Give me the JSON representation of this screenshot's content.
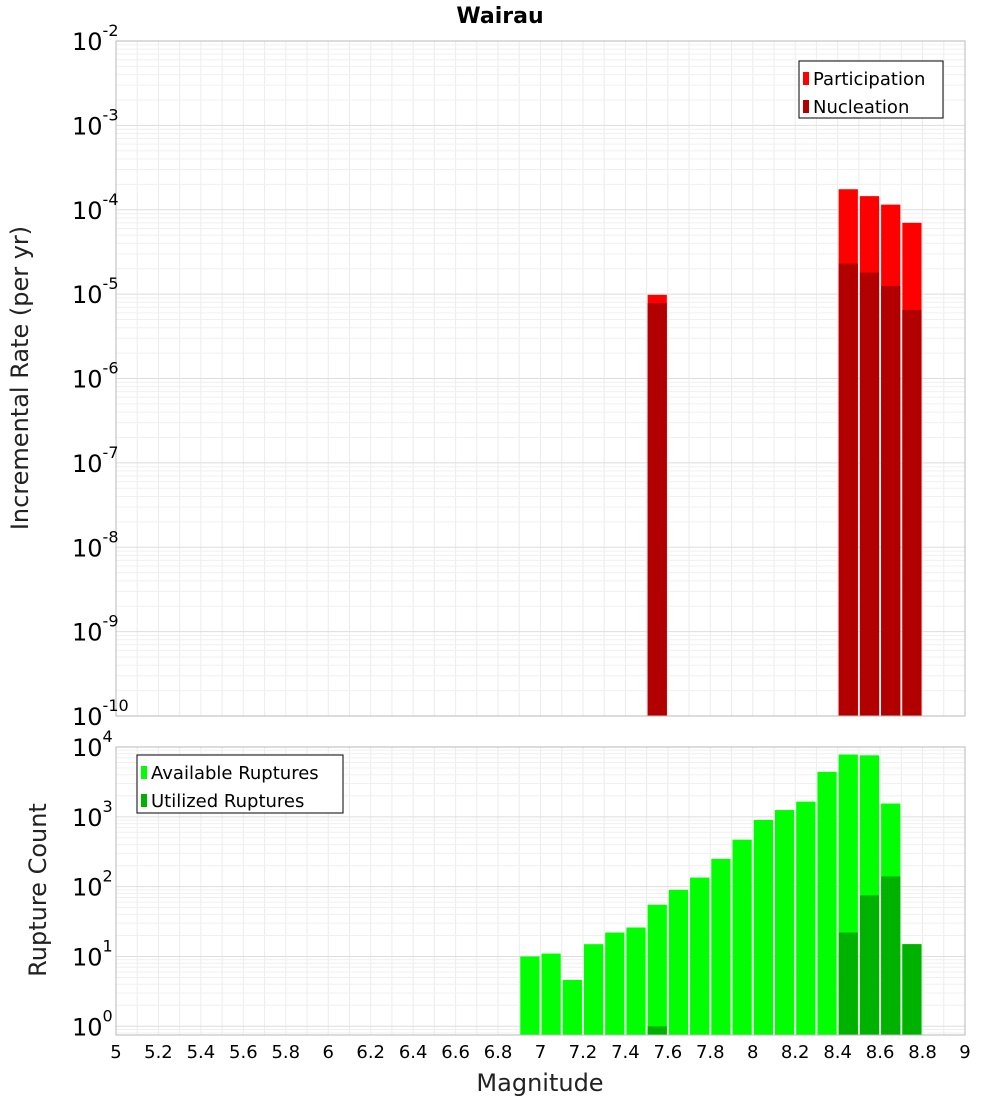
{
  "chart_data": [
    {
      "type": "bar",
      "title": "Wairau",
      "ylabel": "Incremental Rate (per yr)",
      "xlabel": "",
      "xlim": [
        5,
        9
      ],
      "ylim": [
        1e-10,
        0.01
      ],
      "y_scale": "log",
      "bar_width": 0.1,
      "grid": true,
      "legend_position": "top-right",
      "series": [
        {
          "name": "Participation",
          "color": "#ff0000",
          "x": [
            7.55,
            8.45,
            8.55,
            8.65,
            8.75
          ],
          "values": [
            9.8e-06,
            0.000175,
            0.000145,
            0.000115,
            7e-05
          ]
        },
        {
          "name": "Nucleation",
          "color": "#b20000",
          "x": [
            7.55,
            8.45,
            8.55,
            8.65,
            8.75
          ],
          "values": [
            7.8e-06,
            2.3e-05,
            1.8e-05,
            1.25e-05,
            6.5e-06
          ]
        }
      ],
      "y_ticks": [
        {
          "base": "10",
          "exp": "-10",
          "value": 1e-10
        },
        {
          "base": "10",
          "exp": "-9",
          "value": 1e-09
        },
        {
          "base": "10",
          "exp": "-8",
          "value": 1e-08
        },
        {
          "base": "10",
          "exp": "-7",
          "value": 1e-07
        },
        {
          "base": "10",
          "exp": "-6",
          "value": 1e-06
        },
        {
          "base": "10",
          "exp": "-5",
          "value": 1e-05
        },
        {
          "base": "10",
          "exp": "-4",
          "value": 0.0001
        },
        {
          "base": "10",
          "exp": "-3",
          "value": 0.001
        },
        {
          "base": "10",
          "exp": "-2",
          "value": 0.01
        }
      ]
    },
    {
      "type": "bar",
      "title": "",
      "ylabel": "Rupture Count",
      "xlabel": "Magnitude",
      "xlim": [
        5,
        9
      ],
      "ylim": [
        0.75,
        10000
      ],
      "y_scale": "log",
      "bar_width": 0.1,
      "grid": true,
      "legend_position": "top-left",
      "series": [
        {
          "name": "Available Ruptures",
          "color": "#00ff00",
          "x": [
            6.95,
            7.05,
            7.15,
            7.25,
            7.35,
            7.45,
            7.55,
            7.65,
            7.75,
            7.85,
            7.95,
            8.05,
            8.15,
            8.25,
            8.35,
            8.45,
            8.55,
            8.65,
            8.75
          ],
          "values": [
            10,
            11,
            4.6,
            15,
            22,
            26,
            55,
            90,
            135,
            250,
            470,
            900,
            1250,
            1650,
            4400,
            7800,
            7600,
            1550,
            15
          ]
        },
        {
          "name": "Utilized Ruptures",
          "color": "#00b200",
          "x": [
            7.55,
            8.45,
            8.55,
            8.65,
            8.75
          ],
          "values": [
            1,
            22,
            75,
            140,
            15
          ]
        }
      ],
      "y_ticks": [
        {
          "base": "10",
          "exp": "0",
          "value": 1
        },
        {
          "base": "10",
          "exp": "1",
          "value": 10
        },
        {
          "base": "10",
          "exp": "2",
          "value": 100
        },
        {
          "base": "10",
          "exp": "3",
          "value": 1000
        },
        {
          "base": "10",
          "exp": "4",
          "value": 10000
        }
      ],
      "x_ticks": [
        "5",
        "5.2",
        "5.4",
        "5.6",
        "5.8",
        "6",
        "6.2",
        "6.4",
        "6.6",
        "6.8",
        "7",
        "7.2",
        "7.4",
        "7.6",
        "7.8",
        "8",
        "8.2",
        "8.4",
        "8.6",
        "8.8",
        "9"
      ]
    }
  ]
}
